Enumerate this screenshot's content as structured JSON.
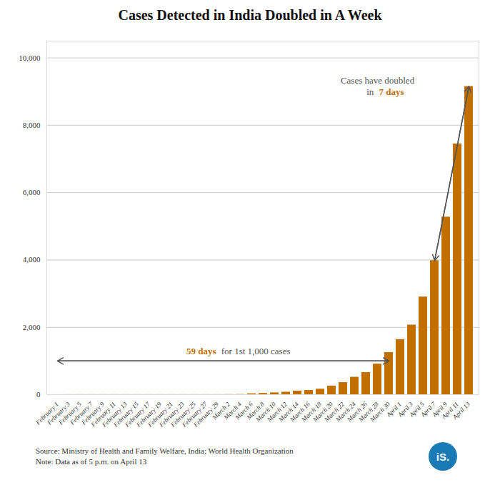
{
  "chart_data": {
    "type": "bar",
    "title": "Cases Detected in India Doubled in A Week",
    "categories": [
      "February 1",
      "February 3",
      "February 5",
      "February 7",
      "February 9",
      "February 11",
      "February 13",
      "February 15",
      "February 17",
      "February 19",
      "February 21",
      "February 23",
      "February 25",
      "February 27",
      "February 29",
      "March 2",
      "March 4",
      "March 6",
      "March 8",
      "March 10",
      "March 12",
      "March 14",
      "March 16",
      "March 18",
      "March 20",
      "March 22",
      "March 24",
      "March 26",
      "March 28",
      "March 30",
      "April 1",
      "April 3",
      "April 5",
      "April 7",
      "April 9",
      "April 11",
      "April 13"
    ],
    "values": [
      1,
      2,
      3,
      3,
      3,
      3,
      3,
      3,
      3,
      3,
      3,
      3,
      3,
      3,
      3,
      5,
      6,
      28,
      39,
      56,
      75,
      107,
      128,
      166,
      258,
      360,
      519,
      657,
      909,
      1251,
      1637,
      2069,
      2902,
      3981,
      5274,
      7447,
      9152
    ],
    "color": "#C17000",
    "ylim": [
      0,
      10500
    ],
    "yticks": [
      0,
      {
        "value": 2000,
        "label": "2,000"
      },
      {
        "value": 4000,
        "label": "4,000"
      },
      {
        "value": 6000,
        "label": "6,000"
      },
      {
        "value": 8000,
        "label": "8,000"
      },
      {
        "value": 10000,
        "label": "10,000"
      }
    ],
    "grid": true,
    "annotations": [
      {
        "arrow": {
          "x1": "April 7",
          "y1": 3981,
          "x2": "April 13",
          "y2": 9152
        },
        "lines": [
          [
            {
              "text": "Cases have doubled"
            }
          ],
          [
            {
              "text": "in "
            },
            {
              "text": "7 days",
              "color": "#C17000"
            }
          ]
        ]
      },
      {
        "arrow": {
          "x1": "February 1",
          "y1": 1000,
          "x2": "March 30",
          "y2": 1000
        },
        "lines": [
          [
            {
              "text": "59 days",
              "color": "#C17000"
            },
            {
              "text": " for 1st 1,000 cases"
            }
          ]
        ]
      }
    ],
    "source": "Source: Ministry of Health and Family Welfare, India; World Health Organization\nNote: Data as of 5 p.m. on April 13",
    "logo": {
      "text": "iS.",
      "color": "#1A7AB5"
    }
  }
}
